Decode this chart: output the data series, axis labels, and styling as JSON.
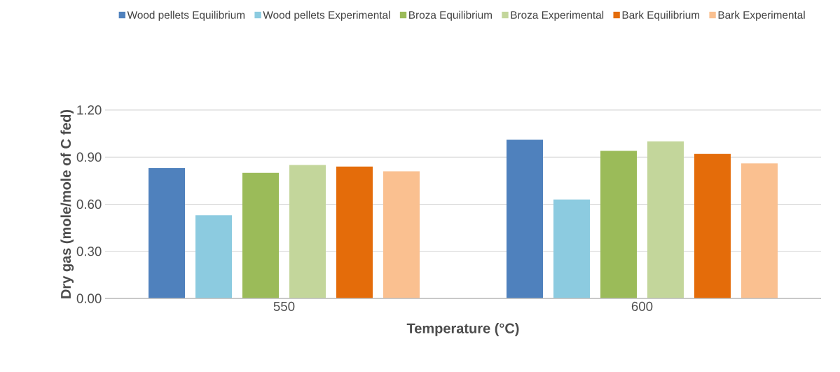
{
  "chart_data": {
    "type": "bar",
    "xlabel": "Temperature (°C)",
    "ylabel": "Dry gas  (mole/mole of C fed)",
    "categories": [
      "550",
      "600"
    ],
    "series": [
      {
        "name": "Wood pellets Equilibrium",
        "color": "#4f81bd",
        "values": [
          0.83,
          1.01
        ]
      },
      {
        "name": "Wood pellets Experimental",
        "color": "#8ccbe0",
        "values": [
          0.53,
          0.63
        ]
      },
      {
        "name": "Broza Equilibrium",
        "color": "#9bbb59",
        "values": [
          0.8,
          0.94
        ]
      },
      {
        "name": "Broza Experimental",
        "color": "#c3d69b",
        "values": [
          0.85,
          1.0
        ]
      },
      {
        "name": "Bark Equilibrium",
        "color": "#e46c0a",
        "values": [
          0.84,
          0.92
        ]
      },
      {
        "name": "Bark Experimental",
        "color": "#fac090",
        "values": [
          0.81,
          0.86
        ]
      }
    ],
    "ylim": [
      0,
      1.2
    ],
    "yticks": [
      {
        "value": 0,
        "label": "0.00"
      },
      {
        "value": 0.3,
        "label": "0.30"
      },
      {
        "value": 0.6,
        "label": "0.60"
      },
      {
        "value": 0.9,
        "label": "0.90"
      },
      {
        "value": 1.2,
        "label": "1.20"
      }
    ],
    "grid": "y",
    "legend": "top"
  }
}
